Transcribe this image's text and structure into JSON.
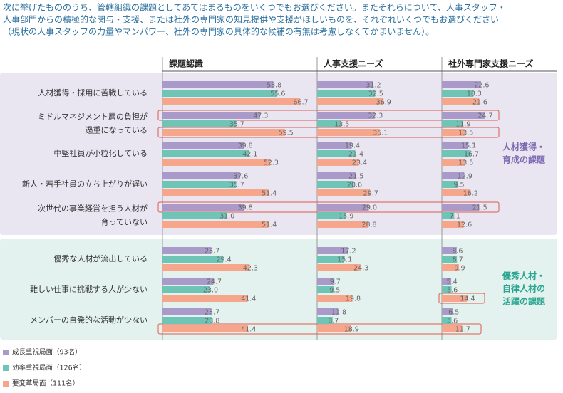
{
  "chart_data": {
    "type": "bar",
    "orientation": "horizontal",
    "title": [
      "次に挙げたもののうち、管轄組織の課題としてあてはまるものをいくつでもお選びください。またそれらについて、人事スタッフ・",
      "人事部門からの積極的な関与・支援、または社外の専門家の知見提供や支援がほしいものを、それぞれいくつでもお選びください",
      "（現状の人事スタッフの力量やマンパワー、社外の専門家の具体的な候補の有無は考慮しなくてかまいません）。"
    ],
    "categories": [
      [
        "人材獲得・採用に苦戦している"
      ],
      [
        "ミドルマネジメント層の負担が",
        "過重になっている"
      ],
      [
        "中堅社員が小粒化している"
      ],
      [
        "新人・若手社員の立ち上がりが遅い"
      ],
      [
        "次世代の事業経営を担う人材が",
        "育っていない"
      ],
      [
        "優秀な人材が流出している"
      ],
      [
        "難しい仕事に挑戦する人が少ない"
      ],
      [
        "メンバーの自発的な活動が少ない"
      ]
    ],
    "groups": [
      {
        "label": [
          "人材獲得・",
          "育成の課題"
        ],
        "color": "#7a66b0",
        "background": "#e9e6f2",
        "start": 0,
        "end": 4
      },
      {
        "label": [
          "優秀人材・",
          "自律人材の",
          "活躍の課題"
        ],
        "color": "#2aa590",
        "background": "#e3f2ef",
        "start": 5,
        "end": 7
      }
    ],
    "series_names": [
      "成長重視局面（93名）",
      "効率重視局面（126名）",
      "要変革局面（111名）"
    ],
    "colors": [
      "#a99ac9",
      "#6ec5b5",
      "#f5a68b"
    ],
    "panels": [
      {
        "title": "課題認識",
        "xlim": [
          0,
          75
        ],
        "series": [
          {
            "values": [
              53.8,
              47.3,
              39.8,
              37.6,
              39.8,
              23.7,
              24.7,
              23.7
            ]
          },
          {
            "values": [
              55.6,
              35.7,
              42.1,
              35.7,
              31.0,
              29.4,
              23.0,
              23.8
            ],
            "value_labels": [
              "55.6",
              "35.7",
              "42.1",
              "35.7",
              "31.0",
              "29.4",
              "23.0",
              "23.8"
            ]
          },
          {
            "values": [
              66.7,
              59.5,
              52.3,
              51.4,
              51.4,
              42.3,
              41.4,
              41.4
            ]
          }
        ]
      },
      {
        "title": "人事支援ニーズ",
        "xlim": [
          0,
          70
        ],
        "series": [
          {
            "values": [
              31.2,
              32.3,
              19.4,
              21.5,
              29.0,
              17.2,
              9.7,
              11.8
            ],
            "value_labels": [
              "31.2",
              "32.3",
              "19.4",
              "21.5",
              "29.0",
              "17.2",
              "9.7",
              "11.8"
            ]
          },
          {
            "values": [
              32.5,
              13.5,
              21.4,
              20.6,
              15.9,
              15.1,
              9.5,
              8.7
            ]
          },
          {
            "values": [
              36.9,
              35.1,
              23.4,
              29.7,
              28.8,
              24.3,
              19.8,
              18.9
            ]
          }
        ]
      },
      {
        "title": "社外専門家支援ニーズ",
        "xlim": [
          0,
          68
        ],
        "series": [
          {
            "values": [
              22.6,
              24.7,
              15.1,
              12.9,
              21.5,
              8.6,
              5.4,
              6.5
            ]
          },
          {
            "values": [
              18.3,
              11.9,
              16.7,
              9.5,
              7.1,
              8.7,
              5.6,
              5.6
            ]
          },
          {
            "values": [
              21.6,
              13.5,
              13.5,
              16.2,
              12.6,
              9.9,
              14.4,
              11.7
            ]
          }
        ]
      }
    ]
  }
}
